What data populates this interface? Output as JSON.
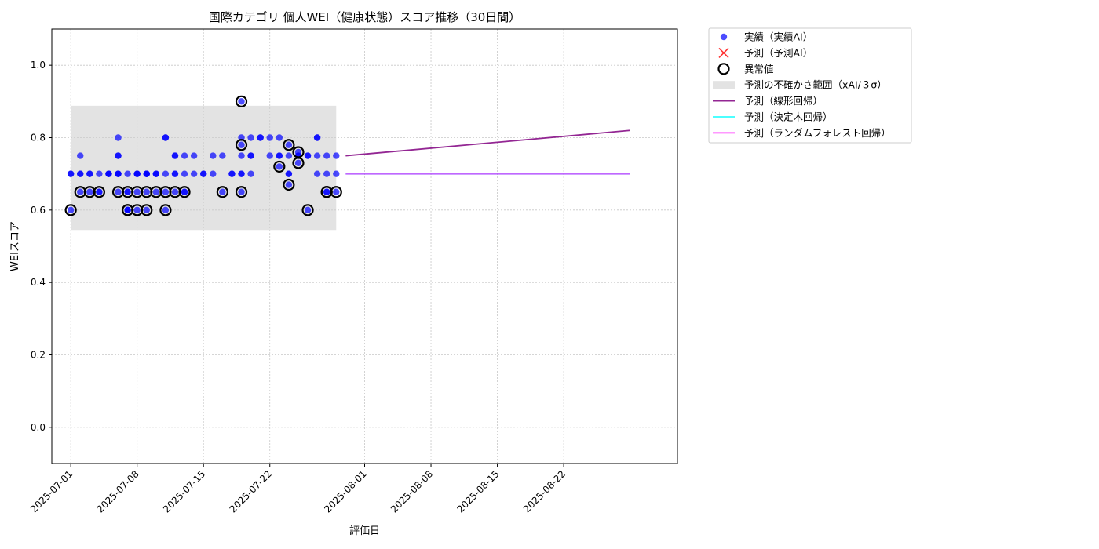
{
  "chart_data": {
    "type": "scatter",
    "title": "国際カテゴリ 個人WEI（健康状態）スコア推移（30日間）",
    "xlabel": "評価日",
    "ylabel": "WEIスコア",
    "xlim": [
      "2025-06-29",
      "2025-09-03"
    ],
    "ylim": [
      -0.1,
      1.1
    ],
    "x_ticks": [
      "2025-07-01",
      "2025-07-08",
      "2025-07-15",
      "2025-07-22",
      "2025-08-01",
      "2025-08-08",
      "2025-08-15",
      "2025-08-22"
    ],
    "y_ticks": [
      "0.0",
      "0.2",
      "0.4",
      "0.6",
      "0.8",
      "1.0"
    ],
    "grid": true,
    "legend_position": "outside-top-right",
    "colors": {
      "actual": "#0000ff",
      "predicted": "#ff0000",
      "anomaly": "#000000",
      "band": "#cccccc",
      "linear": "#800080",
      "tree": "#00ffff",
      "forest": "#ff00ff"
    },
    "uncertainty_band": {
      "x_start": "2025-07-01",
      "x_end": "2025-07-29",
      "y_low": 0.545,
      "y_high": 0.888
    },
    "series": [
      {
        "name": "実績（実績AI）",
        "kind": "scatter",
        "points": [
          [
            "2025-07-01",
            0.6
          ],
          [
            "2025-07-01",
            0.7
          ],
          [
            "2025-07-01",
            0.7
          ],
          [
            "2025-07-02",
            0.7
          ],
          [
            "2025-07-02",
            0.75
          ],
          [
            "2025-07-02",
            0.7
          ],
          [
            "2025-07-02",
            0.65
          ],
          [
            "2025-07-03",
            0.7
          ],
          [
            "2025-07-03",
            0.7
          ],
          [
            "2025-07-03",
            0.65
          ],
          [
            "2025-07-04",
            0.65
          ],
          [
            "2025-07-04",
            0.7
          ],
          [
            "2025-07-04",
            0.65
          ],
          [
            "2025-07-05",
            0.7
          ],
          [
            "2025-07-05",
            0.7
          ],
          [
            "2025-07-05",
            0.7
          ],
          [
            "2025-07-06",
            0.7
          ],
          [
            "2025-07-06",
            0.65
          ],
          [
            "2025-07-06",
            0.7
          ],
          [
            "2025-07-06",
            0.75
          ],
          [
            "2025-07-06",
            0.75
          ],
          [
            "2025-07-06",
            0.8
          ],
          [
            "2025-07-06",
            0.7
          ],
          [
            "2025-07-07",
            0.65
          ],
          [
            "2025-07-07",
            0.6
          ],
          [
            "2025-07-07",
            0.65
          ],
          [
            "2025-07-07",
            0.6
          ],
          [
            "2025-07-07",
            0.7
          ],
          [
            "2025-07-07",
            0.6
          ],
          [
            "2025-07-08",
            0.6
          ],
          [
            "2025-07-08",
            0.7
          ],
          [
            "2025-07-08",
            0.65
          ],
          [
            "2025-07-08",
            0.7
          ],
          [
            "2025-07-08",
            0.7
          ],
          [
            "2025-07-09",
            0.7
          ],
          [
            "2025-07-09",
            0.65
          ],
          [
            "2025-07-09",
            0.7
          ],
          [
            "2025-07-09",
            0.7
          ],
          [
            "2025-07-09",
            0.6
          ],
          [
            "2025-07-09",
            0.7
          ],
          [
            "2025-07-10",
            0.7
          ],
          [
            "2025-07-10",
            0.7
          ],
          [
            "2025-07-10",
            0.65
          ],
          [
            "2025-07-10",
            0.7
          ],
          [
            "2025-07-11",
            0.7
          ],
          [
            "2025-07-11",
            0.65
          ],
          [
            "2025-07-11",
            0.6
          ],
          [
            "2025-07-11",
            0.8
          ],
          [
            "2025-07-11",
            0.8
          ],
          [
            "2025-07-12",
            0.7
          ],
          [
            "2025-07-12",
            0.7
          ],
          [
            "2025-07-12",
            0.75
          ],
          [
            "2025-07-12",
            0.75
          ],
          [
            "2025-07-12",
            0.65
          ],
          [
            "2025-07-13",
            0.75
          ],
          [
            "2025-07-13",
            0.65
          ],
          [
            "2025-07-13",
            0.7
          ],
          [
            "2025-07-13",
            0.65
          ],
          [
            "2025-07-14",
            0.7
          ],
          [
            "2025-07-14",
            0.75
          ],
          [
            "2025-07-15",
            0.7
          ],
          [
            "2025-07-15",
            0.7
          ],
          [
            "2025-07-16",
            0.75
          ],
          [
            "2025-07-16",
            0.7
          ],
          [
            "2025-07-17",
            0.75
          ],
          [
            "2025-07-17",
            0.65
          ],
          [
            "2025-07-18",
            0.7
          ],
          [
            "2025-07-18",
            0.7
          ],
          [
            "2025-07-19",
            0.7
          ],
          [
            "2025-07-19",
            0.65
          ],
          [
            "2025-07-19",
            0.78
          ],
          [
            "2025-07-19",
            0.8
          ],
          [
            "2025-07-19",
            0.9
          ],
          [
            "2025-07-19",
            0.7
          ],
          [
            "2025-07-19",
            0.75
          ],
          [
            "2025-07-20",
            0.75
          ],
          [
            "2025-07-20",
            0.8
          ],
          [
            "2025-07-20",
            0.7
          ],
          [
            "2025-07-20",
            0.75
          ],
          [
            "2025-07-21",
            0.8
          ],
          [
            "2025-07-21",
            0.8
          ],
          [
            "2025-07-22",
            0.75
          ],
          [
            "2025-07-22",
            0.8
          ],
          [
            "2025-07-23",
            0.72
          ],
          [
            "2025-07-23",
            0.8
          ],
          [
            "2025-07-23",
            0.75
          ],
          [
            "2025-07-23",
            0.75
          ],
          [
            "2025-07-24",
            0.67
          ],
          [
            "2025-07-24",
            0.7
          ],
          [
            "2025-07-24",
            0.75
          ],
          [
            "2025-07-24",
            0.78
          ],
          [
            "2025-07-24",
            0.7
          ],
          [
            "2025-07-25",
            0.73
          ],
          [
            "2025-07-25",
            0.76
          ],
          [
            "2025-07-25",
            0.75
          ],
          [
            "2025-07-25",
            0.75
          ],
          [
            "2025-07-26",
            0.75
          ],
          [
            "2025-07-26",
            0.75
          ],
          [
            "2025-07-26",
            0.6
          ],
          [
            "2025-07-27",
            0.8
          ],
          [
            "2025-07-27",
            0.75
          ],
          [
            "2025-07-27",
            0.8
          ],
          [
            "2025-07-27",
            0.7
          ],
          [
            "2025-07-28",
            0.75
          ],
          [
            "2025-07-28",
            0.7
          ],
          [
            "2025-07-28",
            0.65
          ],
          [
            "2025-07-28",
            0.65
          ],
          [
            "2025-07-29",
            0.65
          ],
          [
            "2025-07-29",
            0.7
          ],
          [
            "2025-07-29",
            0.75
          ]
        ]
      },
      {
        "name": "予測（予測AI）",
        "kind": "scatter",
        "points": []
      },
      {
        "name": "異常値",
        "kind": "scatter",
        "points": [
          [
            "2025-07-01",
            0.6
          ],
          [
            "2025-07-02",
            0.65
          ],
          [
            "2025-07-03",
            0.65
          ],
          [
            "2025-07-04",
            0.65
          ],
          [
            "2025-07-06",
            0.65
          ],
          [
            "2025-07-07",
            0.65
          ],
          [
            "2025-07-07",
            0.6
          ],
          [
            "2025-07-07",
            0.6
          ],
          [
            "2025-07-08",
            0.6
          ],
          [
            "2025-07-08",
            0.65
          ],
          [
            "2025-07-09",
            0.65
          ],
          [
            "2025-07-09",
            0.6
          ],
          [
            "2025-07-10",
            0.65
          ],
          [
            "2025-07-11",
            0.65
          ],
          [
            "2025-07-11",
            0.6
          ],
          [
            "2025-07-12",
            0.65
          ],
          [
            "2025-07-13",
            0.65
          ],
          [
            "2025-07-17",
            0.65
          ],
          [
            "2025-07-19",
            0.65
          ],
          [
            "2025-07-19",
            0.78
          ],
          [
            "2025-07-19",
            0.9
          ],
          [
            "2025-07-23",
            0.72
          ],
          [
            "2025-07-24",
            0.67
          ],
          [
            "2025-07-24",
            0.78
          ],
          [
            "2025-07-25",
            0.73
          ],
          [
            "2025-07-25",
            0.76
          ],
          [
            "2025-07-26",
            0.6
          ],
          [
            "2025-07-28",
            0.65
          ],
          [
            "2025-07-28",
            0.65
          ],
          [
            "2025-07-29",
            0.65
          ]
        ]
      },
      {
        "name": "予測の不確かさ範囲（xAI/３σ）",
        "kind": "band"
      },
      {
        "name": "予測（線形回帰）",
        "kind": "line",
        "points": [
          [
            "2025-07-30",
            0.75
          ],
          [
            "2025-08-29",
            0.82
          ]
        ]
      },
      {
        "name": "予測（決定木回帰）",
        "kind": "line",
        "points": [
          [
            "2025-07-30",
            0.7
          ],
          [
            "2025-08-29",
            0.7
          ]
        ]
      },
      {
        "name": "予測（ランダムフォレスト回帰）",
        "kind": "line",
        "points": [
          [
            "2025-07-30",
            0.7
          ],
          [
            "2025-08-29",
            0.7
          ]
        ]
      }
    ]
  }
}
